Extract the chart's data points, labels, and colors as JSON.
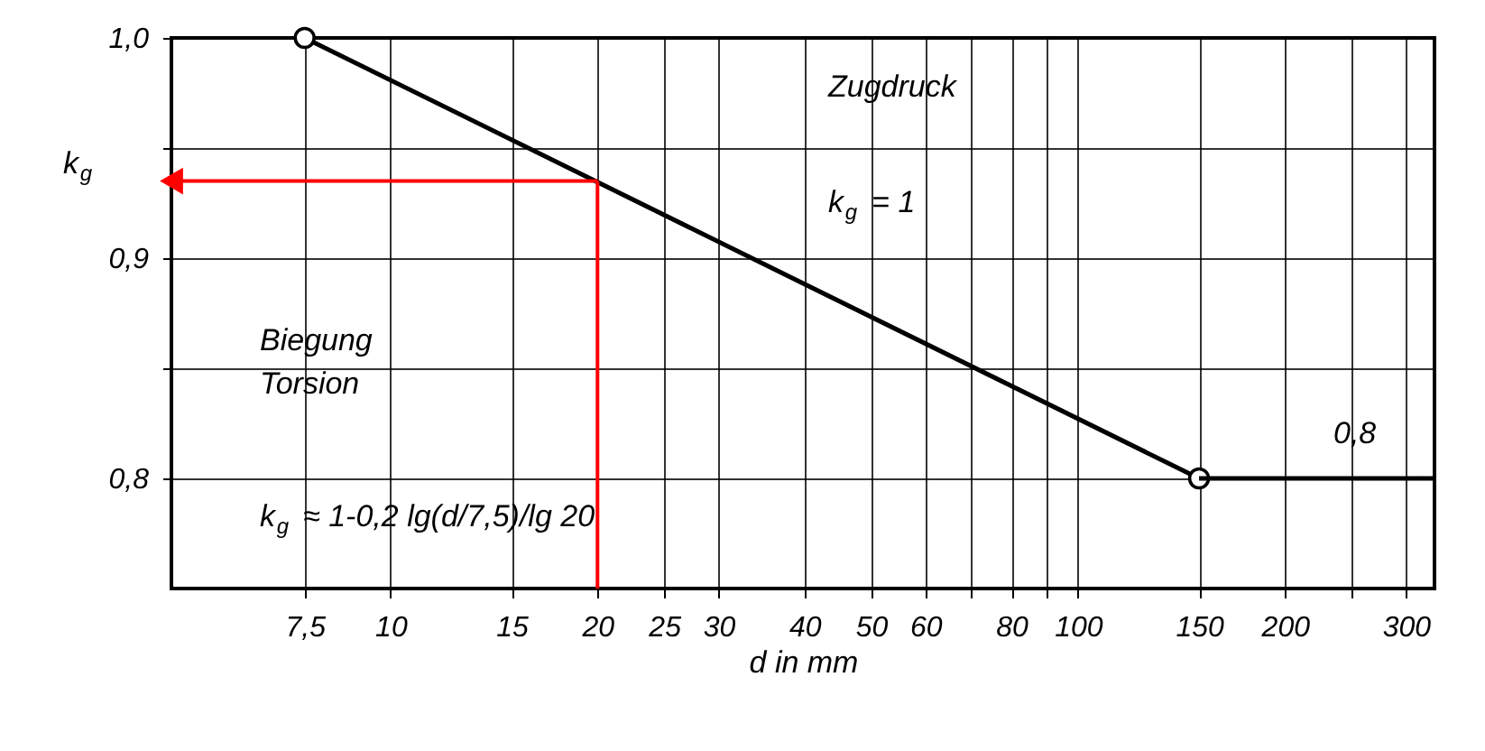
{
  "chart_data": {
    "type": "line",
    "xlabel": "d in mm",
    "ylabel": "k$_{g}$",
    "log": "x",
    "grid": true,
    "line_style": "solid",
    "xlim": [
      4.8,
      330
    ],
    "ylim": [
      0.75,
      1.0
    ],
    "xticks": [
      {
        "value": 7.5,
        "label": "7,5"
      },
      10,
      15,
      20,
      25,
      30,
      40,
      50,
      60,
      {
        "value": 70,
        "label": null
      },
      80,
      {
        "value": 90,
        "label": null
      },
      100,
      150,
      200,
      {
        "value": 250,
        "label": null
      },
      300
    ],
    "yticks": [
      {
        "value": 0.8,
        "label": "0,8"
      },
      {
        "value": 0.85,
        "label": null
      },
      {
        "value": 0.9,
        "label": "0,9"
      },
      {
        "value": 0.95,
        "label": null
      },
      {
        "value": 1.0,
        "label": "1,0"
      }
    ],
    "series": [
      {
        "color": "#000000",
        "x": [
          7.5,
          150
        ],
        "values": [
          1.0,
          0.8
        ],
        "marker": "circle"
      },
      {
        "color": "#000000",
        "x": [
          150,
          330
        ],
        "values": [
          0.8,
          0.8
        ],
        "marker": "none"
      }
    ],
    "ref_lines": [
      {
        "axis": "x",
        "value": 20,
        "color": "#ff0000"
      },
      {
        "axis": "y",
        "value": 0.935,
        "color": "#ff0000"
      }
    ],
    "annotations": [
      "Zugdruck",
      "k$_{g}$ = 1",
      "Biegung\nTorsion",
      "k$_{g}$ ≈ 1-0,2 lg(d/7,5)/lg 20",
      "0,8"
    ]
  }
}
